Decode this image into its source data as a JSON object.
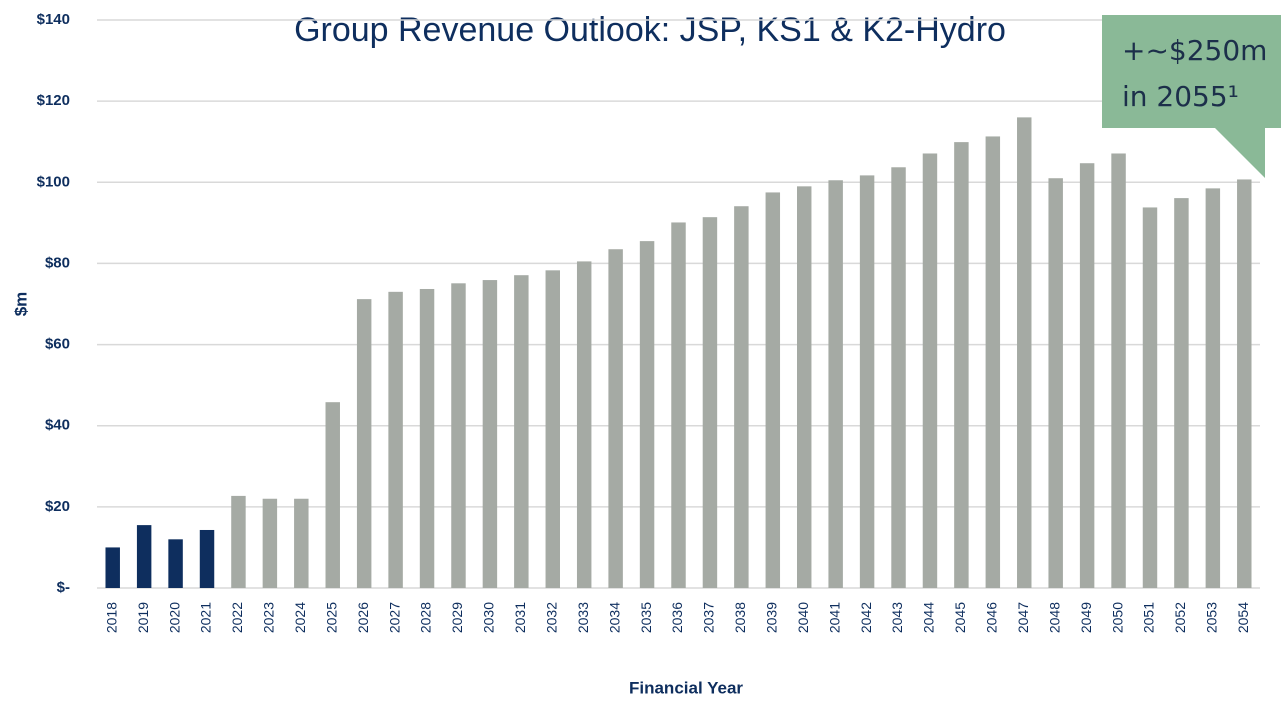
{
  "chart_data": {
    "type": "bar",
    "title": "Group Revenue Outlook: JSP, KS1 & K2-Hydro",
    "y_label": "$m",
    "x_label": "Financial Year",
    "annotation": [
      "+~$250m",
      "in 2055¹"
    ],
    "categories": [
      "2018",
      "2019",
      "2020",
      "2021",
      "2022",
      "2023",
      "2024",
      "2025",
      "2026",
      "2027",
      "2028",
      "2029",
      "2030",
      "2031",
      "2032",
      "2033",
      "2034",
      "2035",
      "2036",
      "2037",
      "2038",
      "2039",
      "2040",
      "2041",
      "2042",
      "2043",
      "2044",
      "2045",
      "2046",
      "2047",
      "2048",
      "2049",
      "2050",
      "2051",
      "2052",
      "2053",
      "2054"
    ],
    "values": [
      10,
      15.5,
      12,
      14.3,
      22.7,
      22,
      22,
      45.8,
      71.2,
      73,
      73.7,
      75.1,
      75.9,
      77.1,
      78.3,
      80.5,
      83.5,
      85.5,
      90.1,
      91.4,
      94.1,
      97.5,
      99,
      100.5,
      101.7,
      103.7,
      107.1,
      109.9,
      111.3,
      116,
      101,
      104.7,
      107.1,
      93.8,
      96.1,
      98.5,
      100.7
    ],
    "colors": [
      "#0e2e5e",
      "#0e2e5e",
      "#0e2e5e",
      "#0e2e5e",
      "#a5aaa4",
      "#a5aaa4",
      "#a5aaa4",
      "#a5aaa4",
      "#a5aaa4",
      "#a5aaa4",
      "#a5aaa4",
      "#a5aaa4",
      "#a5aaa4",
      "#a5aaa4",
      "#a5aaa4",
      "#a5aaa4",
      "#a5aaa4",
      "#a5aaa4",
      "#a5aaa4",
      "#a5aaa4",
      "#a5aaa4",
      "#a5aaa4",
      "#a5aaa4",
      "#a5aaa4",
      "#a5aaa4",
      "#a5aaa4",
      "#a5aaa4",
      "#a5aaa4",
      "#a5aaa4",
      "#a5aaa4",
      "#a5aaa4",
      "#a5aaa4",
      "#a5aaa4",
      "#a5aaa4",
      "#a5aaa4",
      "#a5aaa4",
      "#a5aaa4"
    ],
    "ylim": [
      0,
      140
    ],
    "yticks": [
      {
        "value": 0,
        "label": "$-"
      },
      {
        "value": 20,
        "label": "$20"
      },
      {
        "value": 40,
        "label": "$40"
      },
      {
        "value": 60,
        "label": "$60"
      },
      {
        "value": 80,
        "label": "$80"
      },
      {
        "value": 100,
        "label": "$100"
      },
      {
        "value": 120,
        "label": "$120"
      },
      {
        "value": 140,
        "label": "$140"
      }
    ],
    "grid": true
  }
}
